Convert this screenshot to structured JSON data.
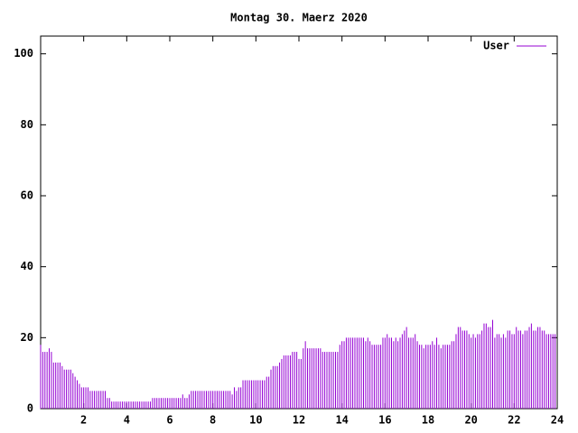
{
  "chart_data": {
    "type": "impulse",
    "title": "Montag 30. Maerz 2020",
    "x": [
      0,
      0.1,
      0.2,
      0.3,
      0.4,
      0.5,
      0.6,
      0.7,
      0.8,
      0.9,
      1,
      1.1,
      1.2,
      1.3,
      1.4,
      1.5,
      1.6,
      1.7,
      1.8,
      1.9,
      2,
      2.1,
      2.2,
      2.3,
      2.4,
      2.5,
      2.6,
      2.7,
      2.8,
      2.9,
      3,
      3.1,
      3.2,
      3.3,
      3.4,
      3.5,
      3.6,
      3.7,
      3.8,
      3.9,
      4,
      4.1,
      4.2,
      4.3,
      4.4,
      4.5,
      4.6,
      4.7,
      4.8,
      4.9,
      5,
      5.1,
      5.2,
      5.3,
      5.4,
      5.5,
      5.6,
      5.7,
      5.8,
      5.9,
      6,
      6.1,
      6.2,
      6.3,
      6.4,
      6.5,
      6.6,
      6.7,
      6.8,
      6.9,
      7,
      7.1,
      7.2,
      7.3,
      7.4,
      7.5,
      7.6,
      7.7,
      7.8,
      7.9,
      8,
      8.1,
      8.2,
      8.3,
      8.4,
      8.5,
      8.6,
      8.7,
      8.8,
      8.9,
      9,
      9.1,
      9.2,
      9.3,
      9.4,
      9.5,
      9.6,
      9.7,
      9.8,
      9.9,
      10,
      10.1,
      10.2,
      10.3,
      10.4,
      10.5,
      10.6,
      10.7,
      10.8,
      10.9,
      11,
      11.1,
      11.2,
      11.3,
      11.4,
      11.5,
      11.6,
      11.7,
      11.8,
      11.9,
      12,
      12.1,
      12.2,
      12.3,
      12.4,
      12.5,
      12.6,
      12.7,
      12.8,
      12.9,
      13,
      13.1,
      13.2,
      13.3,
      13.4,
      13.5,
      13.6,
      13.7,
      13.8,
      13.9,
      14,
      14.1,
      14.2,
      14.3,
      14.4,
      14.5,
      14.6,
      14.7,
      14.8,
      14.9,
      15,
      15.1,
      15.2,
      15.3,
      15.4,
      15.5,
      15.6,
      15.7,
      15.8,
      15.9,
      16,
      16.1,
      16.2,
      16.3,
      16.4,
      16.5,
      16.6,
      16.7,
      16.8,
      16.9,
      17,
      17.1,
      17.2,
      17.3,
      17.4,
      17.5,
      17.6,
      17.7,
      17.8,
      17.9,
      18,
      18.1,
      18.2,
      18.3,
      18.4,
      18.5,
      18.6,
      18.7,
      18.8,
      18.9,
      19,
      19.1,
      19.2,
      19.3,
      19.4,
      19.5,
      19.6,
      19.7,
      19.8,
      19.9,
      20,
      20.1,
      20.2,
      20.3,
      20.4,
      20.5,
      20.6,
      20.7,
      20.8,
      20.9,
      21,
      21.1,
      21.2,
      21.3,
      21.4,
      21.5,
      21.6,
      21.7,
      21.8,
      21.9,
      22,
      22.1,
      22.2,
      22.3,
      22.4,
      22.5,
      22.6,
      22.7,
      22.8,
      22.9,
      23,
      23.1,
      23.2,
      23.3,
      23.4,
      23.5,
      23.6,
      23.7,
      23.8,
      23.9
    ],
    "series": [
      {
        "name": "User",
        "color": "#9400d3",
        "values": [
          18,
          16,
          16,
          16,
          17,
          16,
          13,
          13,
          13,
          13,
          12,
          11,
          11,
          11,
          11,
          10,
          9,
          8,
          7,
          6,
          6,
          6,
          6,
          5,
          5,
          5,
          5,
          5,
          5,
          5,
          5,
          3,
          3,
          2,
          2,
          2,
          2,
          2,
          2,
          2,
          2,
          2,
          2,
          2,
          2,
          2,
          2,
          2,
          2,
          2,
          2,
          2,
          3,
          3,
          3,
          3,
          3,
          3,
          3,
          3,
          3,
          3,
          3,
          3,
          3,
          3,
          4,
          3,
          3,
          4,
          5,
          5,
          5,
          5,
          5,
          5,
          5,
          5,
          5,
          5,
          5,
          5,
          5,
          5,
          5,
          5,
          5,
          5,
          5,
          4,
          6,
          5,
          6,
          6,
          8,
          8,
          8,
          8,
          8,
          8,
          8,
          8,
          8,
          8,
          8,
          9,
          9,
          11,
          12,
          12,
          12,
          13,
          14,
          15,
          15,
          15,
          15,
          16,
          16,
          16,
          14,
          14,
          17,
          19,
          17,
          17,
          17,
          17,
          17,
          17,
          17,
          16,
          16,
          16,
          16,
          16,
          16,
          16,
          16,
          18,
          19,
          19,
          20,
          20,
          20,
          20,
          20,
          20,
          20,
          20,
          20,
          19,
          20,
          19,
          18,
          18,
          18,
          18,
          18,
          20,
          20,
          21,
          20,
          20,
          19,
          20,
          19,
          20,
          21,
          22,
          23,
          20,
          20,
          20,
          21,
          19,
          18,
          18,
          17,
          18,
          18,
          18,
          19,
          18,
          20,
          18,
          17,
          18,
          18,
          18,
          18,
          19,
          19,
          21,
          23,
          23,
          22,
          22,
          22,
          21,
          20,
          21,
          20,
          21,
          21,
          22,
          24,
          24,
          23,
          23,
          25,
          20,
          21,
          21,
          20,
          21,
          20,
          22,
          22,
          21,
          21,
          23,
          22,
          22,
          21,
          22,
          22,
          23,
          24,
          22,
          22,
          23,
          23,
          22,
          22,
          21,
          21,
          21,
          21,
          21
        ]
      }
    ],
    "xlim": [
      0,
      24
    ],
    "xticks": [
      2,
      4,
      6,
      8,
      10,
      12,
      14,
      16,
      18,
      20,
      22,
      24
    ],
    "ylim": [
      0,
      105
    ],
    "yticks": [
      0,
      20,
      40,
      60,
      80,
      100
    ],
    "legend": "top-right"
  }
}
